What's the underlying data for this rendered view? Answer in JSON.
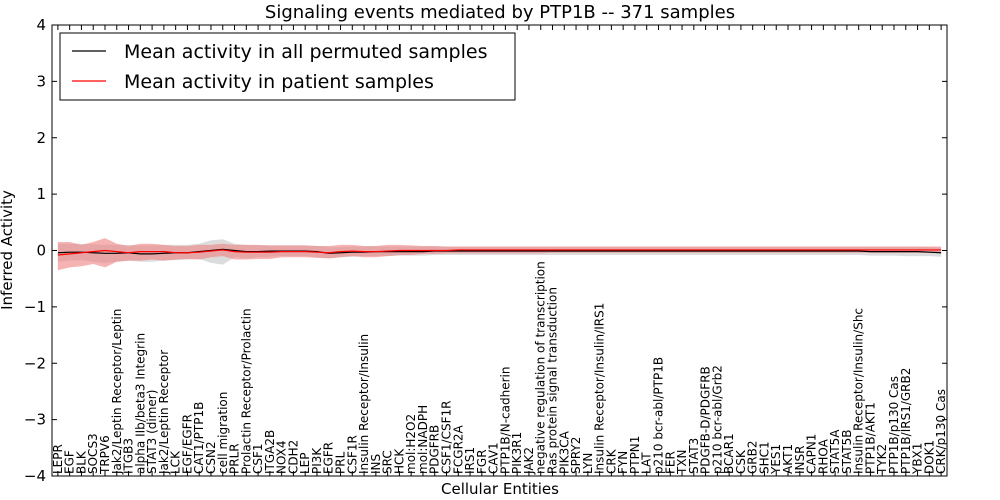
{
  "chart_data": {
    "type": "line",
    "title": "Signaling events mediated by PTP1B -- 371 samples",
    "xlabel": "Cellular Entities",
    "ylabel": "Inferred Activity",
    "ylim": [
      -4,
      4
    ],
    "yticks": [
      4,
      3,
      2,
      1,
      0,
      -1,
      -2,
      -3,
      -4
    ],
    "ytick_labels": [
      "4",
      "3",
      "2",
      "1",
      "0",
      "−1",
      "−2",
      "−3",
      "−4"
    ],
    "legend": {
      "placement": "top-left",
      "entries": [
        {
          "label": "Mean activity in all permuted samples",
          "color": "#000000"
        },
        {
          "label": "Mean activity in patient samples",
          "color": "#ff0000"
        }
      ]
    },
    "categories": [
      "LEPR",
      "EGF",
      "BLK",
      "SOCS3",
      "TRPV6",
      "Jak2/Leptin Receptor/Leptin",
      "ITGB3",
      "alpha IIb/beta3 Integrin",
      "STAT3 (dimer)",
      "Jak2/Leptin Receptor",
      "LCK",
      "EGF/EGFR",
      "CAT1/PTP1B",
      "CSN2",
      "cell migration",
      "PRLR",
      "Prolactin Receptor/Prolactin",
      "CSF1",
      "ITGA2B",
      "NOX4",
      "CDH2",
      "LEP",
      "PI3K",
      "EGFR",
      "PRL",
      "CSF1R",
      "Insulin Receptor/Insulin",
      "INS",
      "SRC",
      "HCK",
      "mol:H2O2",
      "mol:NADPH",
      "PDGFRB",
      "CSF1/CSF1R",
      "FCGR2A",
      "IRS1",
      "FGR",
      "CAV1",
      "PTP1B/N-cadherin",
      "PIK3R1",
      "JAK2",
      "negative regulation of transcription",
      "Ras protein signal transduction",
      "PIK3CA",
      "SPRY2",
      "LYN",
      "Insulin Receptor/Insulin/IRS1",
      "CRK",
      "FYN",
      "PTPN1",
      "LAT",
      "p210 bcr-abl/PTP1B",
      "FER",
      "TXN",
      "STAT3",
      "PDGFB-D/PDGFRB",
      "p210 bcr-abl/Grb2",
      "BCAR1",
      "CSK",
      "GRB2",
      "SHC1",
      "YES1",
      "AKT1",
      "INSR",
      "CAPN1",
      "RHOA",
      "STAT5A",
      "STAT5B",
      "Insulin Receptor/Insulin/Shc",
      "PTP1B/AKT1",
      "TYK2",
      "PTP1B/p130 Cas",
      "PTP1B/IRS1/GRB2",
      "YBX1",
      "DOK1",
      "CRK/p130 Cas"
    ],
    "series": [
      {
        "name": "Mean activity in all permuted samples",
        "color": "#000000",
        "values": [
          -0.04,
          -0.03,
          -0.03,
          -0.04,
          -0.05,
          -0.05,
          -0.04,
          -0.06,
          -0.06,
          -0.05,
          -0.04,
          -0.04,
          -0.02,
          0.0,
          0.02,
          0.0,
          -0.02,
          -0.02,
          -0.01,
          -0.01,
          -0.01,
          -0.01,
          -0.02,
          -0.05,
          -0.04,
          -0.03,
          -0.03,
          -0.02,
          -0.02,
          -0.02,
          -0.02,
          -0.02,
          -0.01,
          -0.01,
          -0.01,
          -0.01,
          -0.01,
          -0.01,
          -0.01,
          -0.01,
          -0.01,
          -0.01,
          -0.01,
          -0.01,
          -0.01,
          -0.01,
          -0.01,
          -0.01,
          -0.01,
          -0.01,
          -0.01,
          -0.01,
          -0.01,
          -0.01,
          -0.01,
          -0.01,
          -0.01,
          -0.01,
          -0.01,
          -0.01,
          -0.01,
          -0.01,
          -0.01,
          -0.01,
          -0.01,
          -0.01,
          -0.01,
          -0.01,
          -0.01,
          -0.02,
          -0.02,
          -0.02,
          -0.02,
          -0.02,
          -0.03,
          -0.04
        ],
        "lower": [
          -0.2,
          -0.18,
          -0.17,
          -0.2,
          -0.22,
          -0.2,
          -0.18,
          -0.2,
          -0.2,
          -0.18,
          -0.17,
          -0.16,
          -0.15,
          -0.22,
          -0.25,
          -0.12,
          -0.14,
          -0.12,
          -0.11,
          -0.1,
          -0.1,
          -0.1,
          -0.12,
          -0.14,
          -0.12,
          -0.11,
          -0.1,
          -0.1,
          -0.1,
          -0.09,
          -0.09,
          -0.09,
          -0.08,
          -0.08,
          -0.08,
          -0.08,
          -0.08,
          -0.08,
          -0.08,
          -0.08,
          -0.08,
          -0.08,
          -0.08,
          -0.08,
          -0.08,
          -0.08,
          -0.08,
          -0.08,
          -0.08,
          -0.08,
          -0.08,
          -0.08,
          -0.08,
          -0.08,
          -0.08,
          -0.08,
          -0.08,
          -0.08,
          -0.08,
          -0.08,
          -0.08,
          -0.08,
          -0.08,
          -0.08,
          -0.08,
          -0.08,
          -0.08,
          -0.08,
          -0.08,
          -0.09,
          -0.09,
          -0.09,
          -0.1,
          -0.1,
          -0.1,
          -0.11
        ],
        "upper": [
          0.12,
          0.12,
          0.12,
          0.11,
          0.1,
          0.1,
          0.1,
          0.09,
          0.09,
          0.1,
          0.1,
          0.1,
          0.12,
          0.18,
          0.2,
          0.12,
          0.1,
          0.09,
          0.09,
          0.09,
          0.09,
          0.09,
          0.08,
          0.06,
          0.06,
          0.07,
          0.07,
          0.07,
          0.07,
          0.07,
          0.07,
          0.07,
          0.07,
          0.07,
          0.07,
          0.07,
          0.07,
          0.07,
          0.07,
          0.07,
          0.07,
          0.07,
          0.07,
          0.07,
          0.07,
          0.07,
          0.07,
          0.07,
          0.07,
          0.07,
          0.07,
          0.07,
          0.07,
          0.07,
          0.07,
          0.07,
          0.07,
          0.07,
          0.07,
          0.07,
          0.07,
          0.07,
          0.07,
          0.07,
          0.07,
          0.07,
          0.07,
          0.07,
          0.07,
          0.07,
          0.07,
          0.07,
          0.07,
          0.07,
          0.06,
          0.05
        ]
      },
      {
        "name": "Mean activity in patient samples",
        "color": "#ff0000",
        "values": [
          -0.08,
          -0.06,
          -0.04,
          -0.02,
          0.0,
          -0.02,
          -0.04,
          -0.02,
          -0.02,
          -0.02,
          -0.04,
          -0.04,
          -0.03,
          -0.01,
          0.01,
          -0.02,
          -0.03,
          -0.03,
          -0.03,
          -0.02,
          -0.02,
          -0.02,
          -0.03,
          -0.04,
          -0.02,
          -0.01,
          -0.02,
          -0.02,
          -0.01,
          0.0,
          0.0,
          0.0,
          0.0,
          0.0,
          0.01,
          0.01,
          0.01,
          0.01,
          0.01,
          0.01,
          0.01,
          0.01,
          0.01,
          0.01,
          0.01,
          0.01,
          0.01,
          0.01,
          0.01,
          0.01,
          0.01,
          0.01,
          0.01,
          0.01,
          0.01,
          0.01,
          0.01,
          0.01,
          0.01,
          0.01,
          0.01,
          0.01,
          0.01,
          0.01,
          0.01,
          0.01,
          0.01,
          0.01,
          0.01,
          0.01,
          0.01,
          0.01,
          0.01,
          0.01,
          0.01,
          0.01
        ],
        "lower": [
          -0.35,
          -0.3,
          -0.28,
          -0.24,
          -0.3,
          -0.2,
          -0.18,
          -0.18,
          -0.16,
          -0.18,
          -0.16,
          -0.15,
          -0.16,
          -0.12,
          -0.1,
          -0.16,
          -0.16,
          -0.15,
          -0.15,
          -0.12,
          -0.12,
          -0.12,
          -0.13,
          -0.14,
          -0.12,
          -0.1,
          -0.12,
          -0.12,
          -0.1,
          -0.08,
          -0.08,
          -0.06,
          -0.06,
          -0.05,
          -0.05,
          -0.05,
          -0.05,
          -0.05,
          -0.05,
          -0.05,
          -0.05,
          -0.05,
          -0.04,
          -0.04,
          -0.04,
          -0.04,
          -0.04,
          -0.04,
          -0.04,
          -0.04,
          -0.04,
          -0.04,
          -0.04,
          -0.04,
          -0.04,
          -0.04,
          -0.04,
          -0.04,
          -0.04,
          -0.04,
          -0.04,
          -0.04,
          -0.04,
          -0.04,
          -0.04,
          -0.04,
          -0.04,
          -0.04,
          -0.04,
          -0.04,
          -0.04,
          -0.04,
          -0.04,
          -0.04,
          -0.04,
          -0.04
        ],
        "upper": [
          0.15,
          0.15,
          0.1,
          0.15,
          0.22,
          0.12,
          0.08,
          0.12,
          0.12,
          0.1,
          0.08,
          0.08,
          0.1,
          0.1,
          0.12,
          0.1,
          0.1,
          0.1,
          0.09,
          0.09,
          0.09,
          0.09,
          0.08,
          0.08,
          0.1,
          0.1,
          0.08,
          0.08,
          0.1,
          0.1,
          0.09,
          0.08,
          0.08,
          0.07,
          0.07,
          0.07,
          0.07,
          0.07,
          0.07,
          0.07,
          0.07,
          0.07,
          0.07,
          0.07,
          0.07,
          0.07,
          0.07,
          0.07,
          0.07,
          0.07,
          0.07,
          0.07,
          0.07,
          0.07,
          0.07,
          0.07,
          0.07,
          0.07,
          0.07,
          0.07,
          0.07,
          0.07,
          0.07,
          0.07,
          0.07,
          0.07,
          0.07,
          0.07,
          0.07,
          0.07,
          0.07,
          0.07,
          0.07,
          0.07,
          0.07,
          0.07
        ]
      }
    ]
  }
}
